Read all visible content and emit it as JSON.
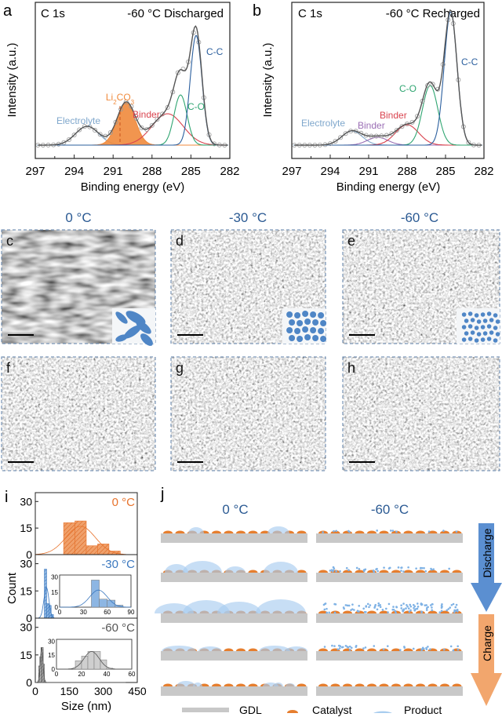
{
  "panels": {
    "a": {
      "label": "a",
      "core": "C 1s",
      "condition": "-60 °C  Discharged"
    },
    "b": {
      "label": "b",
      "core": "C 1s",
      "condition": "-60 °C  Recharged"
    },
    "sem": {
      "titles": [
        "0 °C",
        "-30 °C",
        "-60 °C"
      ],
      "labels": [
        "c",
        "d",
        "e",
        "f",
        "g",
        "h"
      ]
    },
    "i": {
      "label": "i"
    },
    "j": {
      "label": "j",
      "titles": [
        "0 °C",
        "-60 °C"
      ],
      "arrows": [
        "Discharge",
        "Charge"
      ],
      "legend": [
        "GDL",
        "Catalyst",
        "Product"
      ],
      "colors": {
        "gdl": "#c8c8c8",
        "catalyst": "#e67e2e",
        "product": "#a9cdef",
        "discharge": "#5b8fd1",
        "charge": "#f2a66d"
      }
    }
  },
  "chart_data": [
    {
      "type": "line",
      "panel": "a",
      "xlabel": "Binding energy (eV)",
      "ylabel": "Intensity (a.u.)",
      "xlim": [
        297,
        282
      ],
      "x_reversed": true,
      "xticks": [
        "297",
        "294",
        "291",
        "288",
        "285",
        "282"
      ],
      "series": [
        {
          "name": "Electrolyte",
          "color": "#7fa7cc",
          "center": 293.0,
          "height": 0.12,
          "sigma": 0.9
        },
        {
          "name": "Li2CO3",
          "color": "#f08a3c",
          "center": 290.0,
          "height": 0.27,
          "sigma": 0.7,
          "filled": true
        },
        {
          "name": "Binder",
          "color": "#d9434e",
          "center": 286.8,
          "height": 0.2,
          "sigma": 1.2
        },
        {
          "name": "C-O",
          "color": "#2fa571",
          "center": 285.8,
          "height": 0.32,
          "sigma": 0.5
        },
        {
          "name": "C-C",
          "color": "#2b5f9e",
          "center": 284.6,
          "height": 0.7,
          "sigma": 0.45
        }
      ]
    },
    {
      "type": "line",
      "panel": "b",
      "xlabel": "Binding energy (eV)",
      "ylabel": "Intensity (a.u.)",
      "xlim": [
        297,
        282
      ],
      "x_reversed": true,
      "xticks": [
        "297",
        "294",
        "291",
        "288",
        "285",
        "282"
      ],
      "series": [
        {
          "name": "Electrolyte",
          "color": "#7fa7cc",
          "center": 292.3,
          "height": 0.09,
          "sigma": 0.8
        },
        {
          "name": "Binder",
          "color": "#9b6fb5",
          "center": 290.3,
          "height": 0.05,
          "sigma": 0.8
        },
        {
          "name": "Binder",
          "color": "#d9434e",
          "center": 288.0,
          "height": 0.13,
          "sigma": 0.9
        },
        {
          "name": "C-O",
          "color": "#2fa571",
          "center": 286.2,
          "height": 0.38,
          "sigma": 0.6
        },
        {
          "name": "C-C",
          "color": "#2b5f9e",
          "center": 284.6,
          "height": 0.85,
          "sigma": 0.5
        }
      ]
    },
    {
      "type": "bar",
      "panel": "i",
      "xlabel": "Size (nm)",
      "ylabel": "Count",
      "xlim": [
        0,
        450
      ],
      "xticks": [
        "0",
        "150",
        "300",
        "450"
      ],
      "yticks": [
        "0",
        "15",
        "30"
      ],
      "subplots": [
        {
          "name": "0 °C",
          "color": "#e8732c",
          "bin_width": 50,
          "bin_starts": [
            125,
            175,
            225,
            275,
            325
          ],
          "counts": [
            18,
            19,
            5,
            6,
            2
          ],
          "fit_mean": 200,
          "fit_sd": 65,
          "fit_peak": 16
        },
        {
          "name": "-30 °C",
          "color": "#4a86c8",
          "bin_width": 10,
          "bin_starts": [
            40,
            50,
            60,
            70
          ],
          "counts": [
            27,
            8,
            7,
            2
          ],
          "fit_mean": 49,
          "fit_sd": 11,
          "fit_peak": 17,
          "inset": {
            "xlim": [
              0,
              90
            ],
            "xticks": [
              "0",
              "30",
              "60",
              "90"
            ],
            "yticks": [
              "0",
              "15",
              "30"
            ]
          }
        },
        {
          "name": "-60 °C",
          "color": "#9a9a9a",
          "bin_width": 5,
          "bin_starts": [
            15,
            20,
            25,
            30,
            35,
            40
          ],
          "counts": [
            9,
            14,
            19,
            19,
            10,
            1
          ],
          "fit_mean": 28,
          "fit_sd": 6,
          "fit_peak": 19,
          "inset": {
            "xlim": [
              0,
              60
            ],
            "xticks": [
              "0",
              "20",
              "40",
              "60"
            ],
            "yticks": [
              "0",
              "15",
              "30"
            ]
          }
        }
      ]
    }
  ]
}
